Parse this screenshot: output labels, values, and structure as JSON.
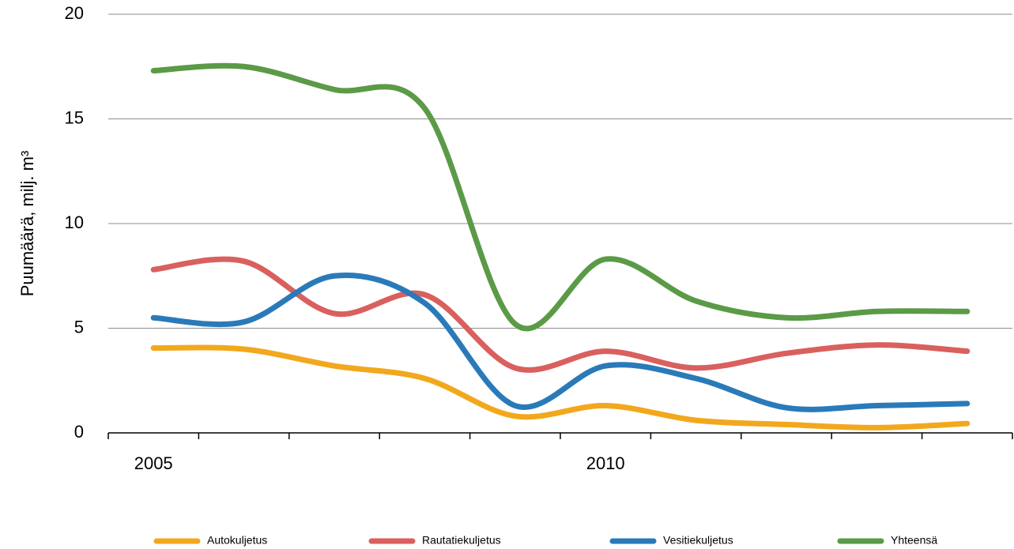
{
  "chart_data": {
    "type": "line",
    "y_label": "Puumäärä, milj. m³",
    "categories": [
      "2005",
      null,
      null,
      null,
      null,
      "2010",
      null,
      null,
      null,
      null
    ],
    "series": [
      {
        "name": "Autokuljetus",
        "color": "#f2a81d",
        "values": [
          4.05,
          4.0,
          3.2,
          2.6,
          0.8,
          1.3,
          0.6,
          0.4,
          0.25,
          0.45
        ]
      },
      {
        "name": "Rautatiekuljetus",
        "color": "#d9605e",
        "values": [
          7.8,
          8.2,
          5.7,
          6.6,
          3.1,
          3.9,
          3.1,
          3.8,
          4.2,
          3.9
        ]
      },
      {
        "name": "Vesitiekuljetus",
        "color": "#2a7ab9",
        "values": [
          5.5,
          5.3,
          7.5,
          6.2,
          1.3,
          3.2,
          2.6,
          1.2,
          1.3,
          1.4
        ]
      },
      {
        "name": "Yhteensä",
        "color": "#5b9a47",
        "values": [
          17.3,
          17.5,
          16.4,
          15.5,
          5.2,
          8.3,
          6.3,
          5.5,
          5.8,
          5.8
        ]
      }
    ],
    "ylim": [
      0,
      20
    ],
    "yticks": [
      0,
      5,
      10,
      15,
      20
    ],
    "grid": true,
    "legend": "bottom"
  }
}
